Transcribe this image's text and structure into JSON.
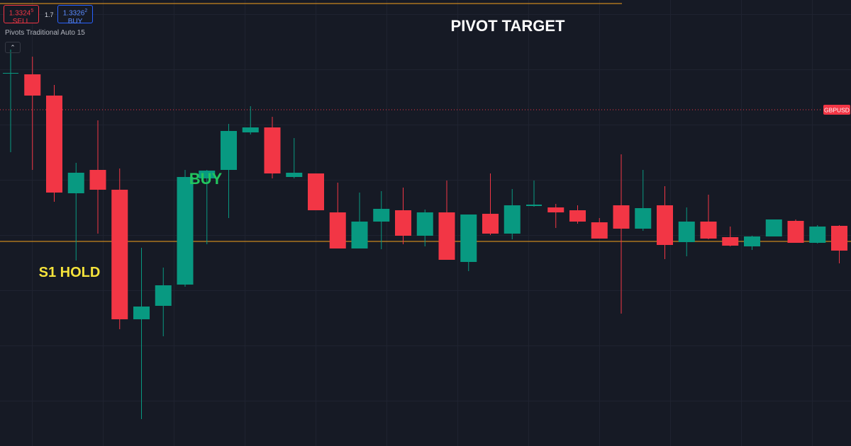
{
  "toolbar": {
    "sell_price": "1.3324",
    "sell_pip": "5",
    "sell_label": "SELL",
    "spread": "1.7",
    "buy_price": "1.3326",
    "buy_pip": "2",
    "buy_label": "BUY"
  },
  "indicator_label": "Pivots Traditional Auto 15",
  "chart_data": {
    "type": "candlestick",
    "ylim": [
      1.32775,
      1.33405
    ],
    "up_color": "#089981",
    "down_color": "#f23645",
    "open": [
      1.33301,
      1.333,
      1.3327,
      1.33132,
      1.33165,
      1.33137,
      1.32954,
      1.32973,
      1.33003,
      1.33153,
      1.33165,
      1.33218,
      1.33225,
      1.33155,
      1.3316,
      1.33105,
      1.33054,
      1.33092,
      1.33108,
      1.33072,
      1.33105,
      1.33035,
      1.33103,
      1.33075,
      1.33114,
      1.33112,
      1.33108,
      1.33091,
      1.33115,
      1.33082,
      1.33115,
      1.33063,
      1.33092,
      1.3307,
      1.33057,
      1.33071,
      1.33093,
      1.33062,
      1.33086
    ],
    "high": [
      1.33335,
      1.33325,
      1.33285,
      1.33175,
      1.33235,
      1.33167,
      1.33055,
      1.33027,
      1.33165,
      1.33165,
      1.3323,
      1.33255,
      1.3324,
      1.3321,
      1.3316,
      1.33147,
      1.33133,
      1.33135,
      1.3314,
      1.33109,
      1.3315,
      1.33102,
      1.3316,
      1.33138,
      1.3315,
      1.33117,
      1.33115,
      1.33097,
      1.33187,
      1.33165,
      1.33142,
      1.33112,
      1.3313,
      1.33085,
      1.33072,
      1.33095,
      1.33095,
      1.33087,
      1.33087
    ],
    "low": [
      1.3319,
      1.33165,
      1.3312,
      1.33037,
      1.33075,
      1.3294,
      1.32813,
      1.3293,
      1.33,
      1.3306,
      1.33097,
      1.33215,
      1.33153,
      1.33153,
      1.33108,
      1.33054,
      1.33054,
      1.33053,
      1.3306,
      1.33057,
      1.33038,
      1.33022,
      1.33073,
      1.33067,
      1.33113,
      1.33083,
      1.33089,
      1.33068,
      1.32962,
      1.33079,
      1.33039,
      1.33043,
      1.33067,
      1.33057,
      1.33052,
      1.33071,
      1.33062,
      1.33061,
      1.33033
    ],
    "close": [
      1.33302,
      1.3327,
      1.33133,
      1.33161,
      1.33137,
      1.32954,
      1.32972,
      1.33002,
      1.33155,
      1.33164,
      1.3322,
      1.33225,
      1.3316,
      1.33161,
      1.33108,
      1.33054,
      1.33092,
      1.3311,
      1.33072,
      1.33105,
      1.33038,
      1.33102,
      1.33075,
      1.33115,
      1.33116,
      1.33105,
      1.33092,
      1.33068,
      1.33082,
      1.33111,
      1.33059,
      1.33092,
      1.33068,
      1.33058,
      1.33071,
      1.33095,
      1.33062,
      1.33085,
      1.33051
    ],
    "levels": [
      {
        "value": 1.334,
        "color": "#f7a21b"
      },
      {
        "value": 1.33064,
        "color": "#f7a21b"
      }
    ],
    "price_line": {
      "value": 1.3325,
      "label": "GBPUSD",
      "color": "#f23645"
    },
    "annotations": [
      {
        "text": "PIVOT TARGET",
        "color": "#ffffff"
      },
      {
        "text": "S1 HOLD",
        "color": "#f5e33b"
      },
      {
        "text": "BUY",
        "color": "#22c55e"
      }
    ]
  }
}
